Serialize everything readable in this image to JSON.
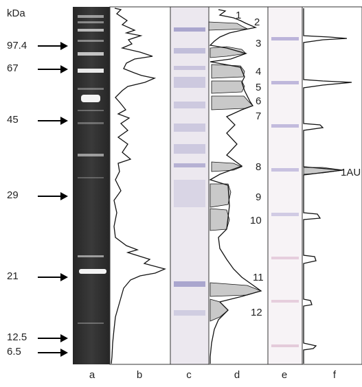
{
  "axis_unit_label": "kDa",
  "markers": [
    {
      "label": "97.4"
    },
    {
      "label": "67"
    },
    {
      "label": "45"
    },
    {
      "label": "29"
    },
    {
      "label": "21"
    },
    {
      "label": "12.5"
    },
    {
      "label": "6.5"
    }
  ],
  "lanes": [
    "a",
    "b",
    "c",
    "d",
    "e",
    "f"
  ],
  "peaks": [
    "1",
    "2",
    "3",
    "4",
    "5",
    "6",
    "7",
    "8",
    "9",
    "10",
    "11",
    "12"
  ],
  "scale_label": "1AU",
  "colors": {
    "gel_background": "#2e2e2e",
    "gel_band": "#f4f4f4",
    "stain_background": "#ece8ef",
    "stain_band": "#9f9ac8",
    "blot_band": "#b8b0d8",
    "peak_fill": "#c9c9c9",
    "trace": "#111111"
  }
}
